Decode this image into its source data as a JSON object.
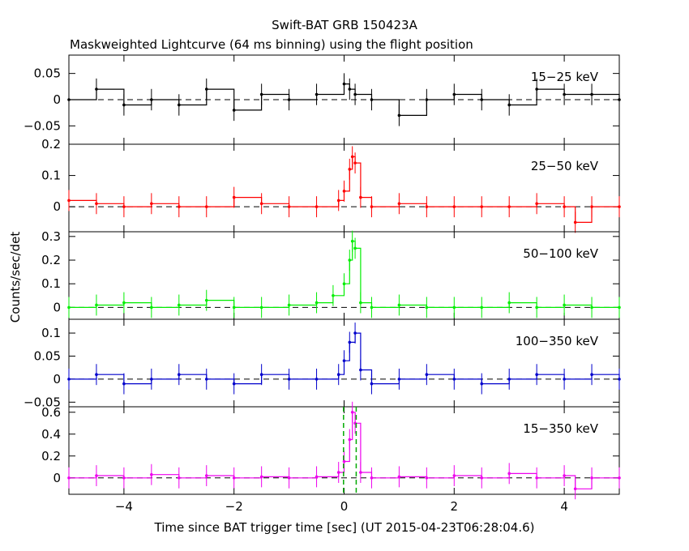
{
  "figure": {
    "title": "Swift-BAT GRB 150423A",
    "subtitle": "Maskweighted Lightcurve (64 ms binning) using the flight position",
    "xlabel": "Time since BAT trigger time [sec] (UT 2015-04-23T06:28:04.6)",
    "ylabel": "Counts/sec/det"
  },
  "chart_data": [
    {
      "type": "line",
      "panel": "15-25 keV",
      "label": "15−25 keV",
      "color": "#000000",
      "xlim": [
        -5,
        5
      ],
      "ylim": [
        -0.085,
        0.085
      ],
      "yticks": [
        -0.05,
        0,
        0.05
      ],
      "yticklabels": [
        "−0.05",
        "0",
        "0.05"
      ],
      "x": [
        -5.0,
        -4.5,
        -4.0,
        -3.5,
        -3.0,
        -2.5,
        -2.0,
        -1.5,
        -1.0,
        -0.5,
        0.0,
        0.1,
        0.2,
        0.5,
        1.0,
        1.5,
        2.0,
        2.5,
        3.0,
        3.5,
        4.0,
        4.5,
        5.0
      ],
      "y": [
        0.0,
        0.02,
        -0.01,
        0.0,
        -0.01,
        0.02,
        -0.02,
        0.01,
        0.0,
        0.01,
        0.03,
        0.02,
        0.01,
        0.0,
        -0.03,
        0.0,
        0.01,
        0.0,
        -0.01,
        0.02,
        0.01,
        0.01,
        0.0
      ],
      "xticks": [
        -4,
        -2,
        0,
        2,
        4
      ],
      "xticklabels": [
        "",
        "",
        "",
        "",
        ""
      ]
    },
    {
      "type": "line",
      "panel": "25-50 keV",
      "label": "25−50 keV",
      "color": "#ff0000",
      "xlim": [
        -5,
        5
      ],
      "ylim": [
        -0.08,
        0.2
      ],
      "yticks": [
        0,
        0.1,
        0.2
      ],
      "yticklabels": [
        "0",
        "0.1",
        "0.2"
      ],
      "x": [
        -5.0,
        -4.5,
        -4.0,
        -3.5,
        -3.0,
        -2.5,
        -2.0,
        -1.5,
        -1.0,
        -0.5,
        -0.1,
        0.0,
        0.1,
        0.15,
        0.2,
        0.3,
        0.5,
        1.0,
        1.5,
        2.0,
        2.5,
        3.0,
        3.5,
        4.0,
        4.2,
        4.5,
        5.0
      ],
      "y": [
        0.02,
        0.01,
        0.0,
        0.01,
        0.0,
        0.0,
        0.03,
        0.01,
        0.0,
        0.0,
        0.02,
        0.05,
        0.12,
        0.16,
        0.14,
        0.03,
        0.0,
        0.01,
        0.0,
        0.0,
        0.0,
        0.0,
        0.01,
        0.0,
        -0.05,
        0.0,
        0.0
      ],
      "xticks": [
        -4,
        -2,
        0,
        2,
        4
      ],
      "xticklabels": [
        "",
        "",
        "",
        "",
        ""
      ]
    },
    {
      "type": "line",
      "panel": "50-100 keV",
      "label": "50−100 keV",
      "color": "#00ee00",
      "xlim": [
        -5,
        5
      ],
      "ylim": [
        -0.05,
        0.32
      ],
      "yticks": [
        0,
        0.1,
        0.2,
        0.3
      ],
      "yticklabels": [
        "0",
        "0.1",
        "0.2",
        "0.3"
      ],
      "x": [
        -5.0,
        -4.5,
        -4.0,
        -3.5,
        -3.0,
        -2.5,
        -2.0,
        -1.5,
        -1.0,
        -0.5,
        -0.2,
        0.0,
        0.1,
        0.15,
        0.2,
        0.3,
        0.5,
        1.0,
        1.5,
        2.0,
        2.5,
        3.0,
        3.5,
        4.0,
        4.5,
        5.0
      ],
      "y": [
        0.0,
        0.01,
        0.02,
        0.0,
        0.01,
        0.03,
        0.0,
        0.0,
        0.01,
        0.02,
        0.05,
        0.1,
        0.2,
        0.28,
        0.25,
        0.02,
        0.0,
        0.01,
        0.0,
        0.0,
        0.0,
        0.02,
        0.0,
        0.01,
        0.0,
        0.0
      ],
      "xticks": [
        -4,
        -2,
        0,
        2,
        4
      ],
      "xticklabels": [
        "",
        "",
        "",
        "",
        ""
      ]
    },
    {
      "type": "line",
      "panel": "100-350 keV",
      "label": "100−350 keV",
      "color": "#0000cc",
      "xlim": [
        -5,
        5
      ],
      "ylim": [
        -0.06,
        0.13
      ],
      "yticks": [
        -0.05,
        0,
        0.05,
        0.1
      ],
      "yticklabels": [
        "−0.05",
        "0",
        "0.05",
        "0.1"
      ],
      "x": [
        -5.0,
        -4.5,
        -4.0,
        -3.5,
        -3.0,
        -2.5,
        -2.0,
        -1.5,
        -1.0,
        -0.5,
        -0.1,
        0.0,
        0.1,
        0.2,
        0.3,
        0.5,
        1.0,
        1.5,
        2.0,
        2.5,
        3.0,
        3.5,
        4.0,
        4.5,
        5.0
      ],
      "y": [
        0.0,
        0.01,
        -0.01,
        0.0,
        0.01,
        0.0,
        -0.01,
        0.01,
        0.0,
        0.0,
        0.01,
        0.04,
        0.08,
        0.1,
        0.02,
        -0.01,
        0.0,
        0.01,
        0.0,
        -0.01,
        0.0,
        0.01,
        0.0,
        0.01,
        0.0
      ],
      "xticks": [
        -4,
        -2,
        0,
        2,
        4
      ],
      "xticklabels": [
        "",
        "",
        "",
        "",
        ""
      ]
    },
    {
      "type": "line",
      "panel": "15-350 keV",
      "label": "15−350 keV",
      "color": "#ee00ee",
      "xlim": [
        -5,
        5
      ],
      "ylim": [
        -0.15,
        0.65
      ],
      "yticks": [
        0,
        0.2,
        0.4,
        0.6
      ],
      "yticklabels": [
        "0",
        "0.2",
        "0.4",
        "0.6"
      ],
      "x": [
        -5.0,
        -4.5,
        -4.0,
        -3.5,
        -3.0,
        -2.5,
        -2.0,
        -1.5,
        -1.0,
        -0.5,
        -0.1,
        0.0,
        0.1,
        0.15,
        0.2,
        0.3,
        0.5,
        1.0,
        1.5,
        2.0,
        2.5,
        3.0,
        3.5,
        4.0,
        4.2,
        4.5,
        5.0
      ],
      "y": [
        0.0,
        0.02,
        0.0,
        0.03,
        0.0,
        0.02,
        0.0,
        0.01,
        0.0,
        0.01,
        0.05,
        0.15,
        0.35,
        0.6,
        0.5,
        0.05,
        0.0,
        0.01,
        0.0,
        0.02,
        0.0,
        0.04,
        0.0,
        0.02,
        -0.1,
        0.0,
        0.0
      ],
      "xticks": [
        -4,
        -2,
        0,
        2,
        4
      ],
      "xticklabels": [
        "−4",
        "−2",
        "0",
        "2",
        "4"
      ],
      "vlines": [
        -0.01,
        0.22
      ]
    }
  ]
}
